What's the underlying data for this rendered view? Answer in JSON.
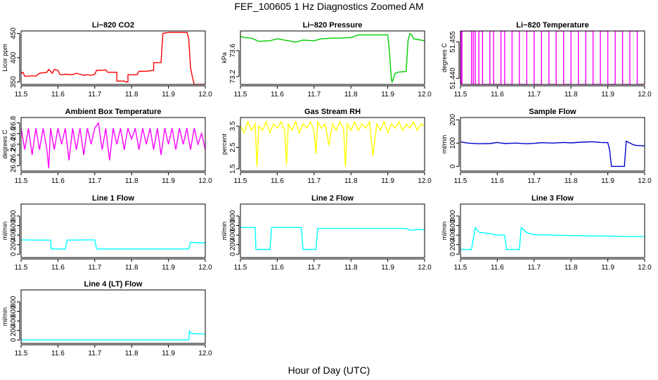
{
  "figure": {
    "title": "FEF_100605  1 Hz Diagnostics Zoomed AM",
    "xlabel": "Hour of Day (UTC)"
  },
  "chart_data": [
    {
      "type": "line",
      "title": "Li−820 CO2",
      "ylabel": "Licor ppm",
      "color": "#ff0000",
      "xlim": [
        11.5,
        12.0
      ],
      "ylim": [
        345,
        455
      ],
      "xticks": [
        11.5,
        11.6,
        11.7,
        11.8,
        11.9,
        12.0
      ],
      "yticks": [
        350,
        400,
        450
      ],
      "x": [
        11.5,
        11.505,
        11.51,
        11.52,
        11.53,
        11.54,
        11.55,
        11.57,
        11.575,
        11.585,
        11.59,
        11.6,
        11.605,
        11.61,
        11.62,
        11.64,
        11.65,
        11.66,
        11.67,
        11.68,
        11.69,
        11.7,
        11.705,
        11.71,
        11.73,
        11.735,
        11.75,
        11.76,
        11.76,
        11.765,
        11.78,
        11.785,
        11.79,
        11.79,
        11.81,
        11.815,
        11.82,
        11.83,
        11.835,
        11.84,
        11.86,
        11.86,
        11.87,
        11.88,
        11.885,
        11.9,
        11.92,
        11.95,
        11.955,
        11.96,
        11.965,
        11.97,
        11.98,
        12.0
      ],
      "y": [
        368,
        370,
        362,
        362,
        363,
        362,
        368,
        370,
        376,
        368,
        376,
        374,
        366,
        365,
        366,
        365,
        368,
        366,
        364,
        365,
        364,
        366,
        374,
        374,
        375,
        370,
        370,
        370,
        352,
        352,
        352,
        350,
        350,
        365,
        365,
        365,
        372,
        372,
        372,
        372,
        374,
        390,
        390,
        390,
        450,
        452,
        452,
        452,
        440,
        380,
        360,
        345,
        345,
        345
      ]
    },
    {
      "type": "line",
      "title": "Li−820 Pressure",
      "ylabel": "kPa",
      "color": "#00cc00",
      "xlim": [
        11.5,
        12.0
      ],
      "ylim": [
        73.08,
        73.9
      ],
      "xticks": [
        11.5,
        11.6,
        11.7,
        11.8,
        11.9,
        12.0
      ],
      "yticks": [
        73.2,
        73.6
      ],
      "x": [
        11.5,
        11.51,
        11.53,
        11.55,
        11.58,
        11.6,
        11.63,
        11.65,
        11.67,
        11.7,
        11.72,
        11.75,
        11.77,
        11.8,
        11.82,
        11.85,
        11.88,
        11.9,
        11.905,
        11.91,
        11.912,
        11.92,
        11.93,
        11.95,
        11.955,
        11.96,
        11.965,
        11.97,
        11.98,
        12.0
      ],
      "y": [
        73.82,
        73.8,
        73.79,
        73.74,
        73.75,
        73.78,
        73.75,
        73.73,
        73.76,
        73.75,
        73.78,
        73.79,
        73.79,
        73.8,
        73.84,
        73.84,
        73.84,
        73.84,
        73.55,
        73.15,
        73.12,
        73.25,
        73.27,
        73.28,
        73.75,
        73.86,
        73.84,
        73.78,
        73.77,
        73.75
      ]
    },
    {
      "type": "line",
      "title": "Li−820 Temperature",
      "ylabel": "degrees C",
      "color": "#ff00ff",
      "xlim": [
        11.5,
        12.0
      ],
      "ylim": [
        51.4375,
        51.4595
      ],
      "xticks": [
        11.5,
        11.6,
        11.7,
        11.8,
        11.9,
        12.0
      ],
      "yticks": [
        51.44,
        51.455
      ],
      "x": [
        11.5,
        11.502,
        11.502,
        11.504,
        11.504,
        11.53,
        11.53,
        11.535,
        11.535,
        11.54,
        11.54,
        11.55,
        11.55,
        11.56,
        11.56,
        11.58,
        11.58,
        11.59,
        11.59,
        11.61,
        11.61,
        11.62,
        11.62,
        11.64,
        11.64,
        11.66,
        11.66,
        11.68,
        11.68,
        11.7,
        11.7,
        11.72,
        11.72,
        11.74,
        11.74,
        11.76,
        11.76,
        11.78,
        11.78,
        11.8,
        11.8,
        11.82,
        11.82,
        11.84,
        11.84,
        11.86,
        11.86,
        11.88,
        11.88,
        11.9,
        11.9,
        11.92,
        11.92,
        11.94,
        11.94,
        11.96,
        11.96,
        11.98,
        11.98,
        12.0
      ],
      "y": [
        51.4595,
        51.4595,
        51.4375,
        51.4375,
        51.4595,
        51.4595,
        51.4375,
        51.4375,
        51.4595,
        51.4595,
        51.4375,
        51.4375,
        51.4595,
        51.4595,
        51.4375,
        51.4375,
        51.4595,
        51.4595,
        51.4375,
        51.4375,
        51.4595,
        51.4595,
        51.4375,
        51.4375,
        51.4595,
        51.4595,
        51.4375,
        51.4375,
        51.4595,
        51.4595,
        51.4375,
        51.4375,
        51.4595,
        51.4595,
        51.4375,
        51.4375,
        51.4595,
        51.4595,
        51.4375,
        51.4375,
        51.4595,
        51.4595,
        51.4375,
        51.4375,
        51.4595,
        51.4595,
        51.4375,
        51.4375,
        51.4595,
        51.4595,
        51.4375,
        51.4375,
        51.4595,
        51.4595,
        51.4375,
        51.4375,
        51.4595,
        51.4595,
        51.4375,
        51.4375
      ]
    },
    {
      "type": "line",
      "title": "Ambient Box Temperature",
      "ylabel": "degrees C",
      "color": "#ff00ff",
      "xlim": [
        11.5,
        12.0
      ],
      "ylim": [
        25.9,
        26.9
      ],
      "xticks": [
        11.5,
        11.6,
        11.7,
        11.8,
        11.9,
        12.0
      ],
      "yticks": [
        26.0,
        26.2,
        26.4,
        26.6,
        26.8
      ],
      "x": [
        11.5,
        11.51,
        11.52,
        11.53,
        11.54,
        11.55,
        11.56,
        11.57,
        11.575,
        11.58,
        11.59,
        11.6,
        11.61,
        11.62,
        11.63,
        11.64,
        11.65,
        11.66,
        11.67,
        11.68,
        11.69,
        11.7,
        11.71,
        11.72,
        11.73,
        11.74,
        11.75,
        11.76,
        11.77,
        11.78,
        11.79,
        11.8,
        11.81,
        11.82,
        11.83,
        11.84,
        11.85,
        11.86,
        11.87,
        11.88,
        11.89,
        11.9,
        11.91,
        11.92,
        11.93,
        11.94,
        11.95,
        11.96,
        11.97,
        11.98,
        11.99,
        12.0
      ],
      "y": [
        26.7,
        26.3,
        26.7,
        26.2,
        26.7,
        26.3,
        26.7,
        26.3,
        25.95,
        26.7,
        26.3,
        26.7,
        26.4,
        26.7,
        26.1,
        26.7,
        26.3,
        26.7,
        26.2,
        26.7,
        26.4,
        26.7,
        26.8,
        26.3,
        26.7,
        26.1,
        26.7,
        26.4,
        26.7,
        26.3,
        26.7,
        26.5,
        26.7,
        26.3,
        26.7,
        26.4,
        26.7,
        26.3,
        26.7,
        26.2,
        26.7,
        26.4,
        26.7,
        26.3,
        26.7,
        26.4,
        26.7,
        26.3,
        26.7,
        26.4,
        26.6,
        26.3
      ]
    },
    {
      "type": "line",
      "title": "Gas Stream RH",
      "ylabel": "percent",
      "color": "#ffff00",
      "xlim": [
        11.5,
        12.0
      ],
      "ylim": [
        1.4,
        3.9
      ],
      "xticks": [
        11.5,
        11.6,
        11.7,
        11.8,
        11.9,
        12.0
      ],
      "yticks": [
        1.5,
        2.5,
        3.5
      ],
      "x": [
        11.5,
        11.51,
        11.52,
        11.53,
        11.54,
        11.545,
        11.55,
        11.56,
        11.57,
        11.58,
        11.59,
        11.6,
        11.61,
        11.62,
        11.625,
        11.63,
        11.64,
        11.65,
        11.66,
        11.67,
        11.68,
        11.69,
        11.7,
        11.705,
        11.71,
        11.72,
        11.73,
        11.74,
        11.75,
        11.76,
        11.77,
        11.78,
        11.785,
        11.79,
        11.8,
        11.81,
        11.82,
        11.83,
        11.84,
        11.85,
        11.86,
        11.87,
        11.88,
        11.89,
        11.9,
        11.91,
        11.92,
        11.93,
        11.94,
        11.95,
        11.96,
        11.97,
        11.98,
        11.99,
        12.0
      ],
      "y": [
        3.5,
        3.2,
        3.7,
        3.3,
        3.6,
        1.6,
        3.5,
        3.3,
        3.7,
        3.2,
        3.6,
        3.4,
        3.7,
        3.3,
        1.7,
        3.6,
        3.3,
        3.7,
        3.2,
        3.6,
        3.4,
        3.7,
        3.3,
        2.2,
        3.7,
        3.4,
        3.6,
        2.6,
        3.6,
        3.3,
        3.7,
        3.4,
        1.6,
        3.6,
        3.3,
        3.7,
        3.3,
        3.6,
        3.4,
        3.7,
        2.1,
        3.6,
        3.3,
        3.7,
        3.2,
        3.6,
        3.4,
        3.7,
        3.3,
        3.6,
        3.4,
        3.7,
        3.3,
        3.6,
        3.5
      ]
    },
    {
      "type": "line",
      "title": "Sample Flow",
      "ylabel": "ml/min",
      "color": "#0000cc",
      "xlim": [
        11.5,
        12.0
      ],
      "ylim": [
        -20,
        210
      ],
      "xticks": [
        11.5,
        11.6,
        11.7,
        11.8,
        11.9,
        12.0
      ],
      "yticks": [
        0,
        100,
        200
      ],
      "x": [
        11.5,
        11.52,
        11.55,
        11.58,
        11.6,
        11.62,
        11.65,
        11.68,
        11.7,
        11.72,
        11.75,
        11.78,
        11.8,
        11.83,
        11.86,
        11.88,
        11.9,
        11.905,
        11.91,
        11.945,
        11.95,
        11.96,
        11.97,
        11.98,
        12.0
      ],
      "y": [
        105,
        100,
        97,
        98,
        103,
        98,
        100,
        97,
        99,
        102,
        100,
        103,
        101,
        104,
        106,
        103,
        102,
        70,
        0,
        0,
        108,
        100,
        92,
        90,
        88
      ]
    },
    {
      "type": "line",
      "title": "Line 1 Flow",
      "ylabel": "ml/min",
      "color": "#00ffff",
      "xlim": [
        11.5,
        12.0
      ],
      "ylim": [
        -70,
        1050
      ],
      "xticks": [
        11.5,
        11.6,
        11.7,
        11.8,
        11.9,
        12.0
      ],
      "yticks": [
        0,
        200,
        400,
        600,
        800
      ],
      "x": [
        11.5,
        11.55,
        11.58,
        11.582,
        11.62,
        11.625,
        11.7,
        11.705,
        11.955,
        11.96,
        11.98,
        12.0
      ],
      "y": [
        300,
        295,
        295,
        110,
        110,
        295,
        300,
        110,
        110,
        250,
        240,
        240
      ]
    },
    {
      "type": "line",
      "title": "Line 2 Flow",
      "ylabel": "ml/min",
      "color": "#00ffff",
      "xlim": [
        11.5,
        12.0
      ],
      "ylim": [
        -70,
        1050
      ],
      "xticks": [
        11.5,
        11.6,
        11.7,
        11.8,
        11.9,
        12.0
      ],
      "yticks": [
        0,
        200,
        400,
        600,
        800
      ],
      "x": [
        11.5,
        11.54,
        11.542,
        11.58,
        11.585,
        11.665,
        11.67,
        11.705,
        11.71,
        11.95,
        11.96,
        11.98,
        12.0
      ],
      "y": [
        560,
        560,
        100,
        100,
        560,
        560,
        100,
        100,
        540,
        540,
        500,
        520,
        510
      ]
    },
    {
      "type": "line",
      "title": "Line 3 Flow",
      "ylabel": "ml/min",
      "color": "#00ffff",
      "xlim": [
        11.5,
        12.0
      ],
      "ylim": [
        -70,
        1050
      ],
      "xticks": [
        11.5,
        11.6,
        11.7,
        11.8,
        11.9,
        12.0
      ],
      "yticks": [
        0,
        200,
        400,
        600,
        800
      ],
      "x": [
        11.5,
        11.53,
        11.54,
        11.55,
        11.58,
        11.6,
        11.62,
        11.625,
        11.66,
        11.665,
        11.68,
        11.7,
        11.8,
        11.9,
        11.95,
        12.0
      ],
      "y": [
        100,
        100,
        560,
        460,
        430,
        400,
        400,
        100,
        100,
        560,
        450,
        410,
        390,
        380,
        370,
        370
      ]
    },
    {
      "type": "line",
      "title": "Line 4 (LT) Flow",
      "ylabel": "ml/min",
      "color": "#00ffff",
      "xlim": [
        11.5,
        12.0
      ],
      "ylim": [
        -70,
        1050
      ],
      "xticks": [
        11.5,
        11.6,
        11.7,
        11.8,
        11.9,
        12.0
      ],
      "yticks": [
        0,
        200,
        400,
        600,
        800
      ],
      "x": [
        11.5,
        11.9,
        11.955,
        11.957,
        11.96,
        11.97,
        12.0
      ],
      "y": [
        5,
        5,
        5,
        190,
        150,
        130,
        130
      ]
    }
  ]
}
